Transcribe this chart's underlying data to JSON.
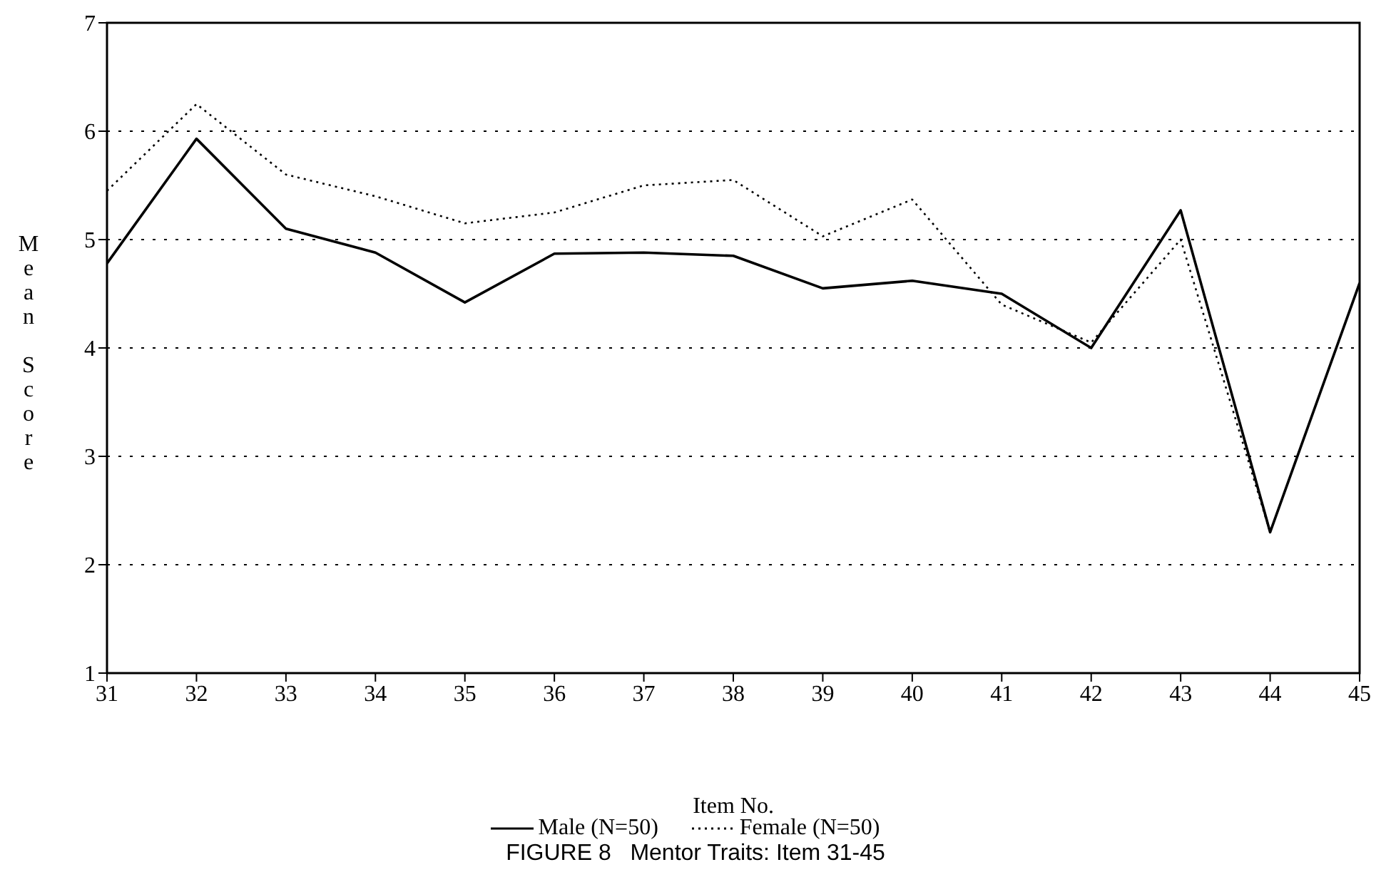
{
  "chart_data": {
    "type": "line",
    "title": "FIGURE 8   Mentor Traits: Item 31-45",
    "xlabel": "Item No.",
    "ylabel": "Mean Score",
    "x": [
      31,
      32,
      33,
      34,
      35,
      36,
      37,
      38,
      39,
      40,
      41,
      42,
      43,
      44,
      45
    ],
    "series": [
      {
        "name": "Male (N=50)",
        "color": "#000000",
        "line_style": "solid",
        "values": [
          4.78,
          5.93,
          5.1,
          4.88,
          4.42,
          4.87,
          4.88,
          4.85,
          4.55,
          4.62,
          4.5,
          4.0,
          5.27,
          2.3,
          4.6
        ]
      },
      {
        "name": "Female (N=50)",
        "color": "#000000",
        "line_style": "dotted",
        "values": [
          5.45,
          6.25,
          5.6,
          5.4,
          5.15,
          5.25,
          5.5,
          5.55,
          5.03,
          5.37,
          4.4,
          4.05,
          5.0,
          2.3,
          null
        ]
      }
    ],
    "xlim": [
      31,
      45
    ],
    "xticks": [
      31,
      32,
      33,
      34,
      35,
      36,
      37,
      38,
      39,
      40,
      41,
      42,
      43,
      44,
      45
    ],
    "ylim": [
      1,
      7
    ],
    "yticks": [
      1,
      2,
      3,
      4,
      5,
      6,
      7
    ],
    "grid": "y",
    "legend": "bottom",
    "marker": "none"
  }
}
